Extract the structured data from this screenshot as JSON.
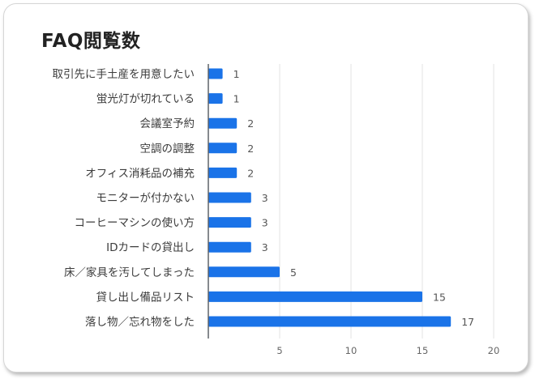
{
  "chart_data": {
    "type": "bar",
    "orientation": "horizontal",
    "title": "FAQ閲覧数",
    "categories": [
      "取引先に手土産を用意したい",
      "蛍光灯が切れている",
      "会議室予約",
      "空調の調整",
      "オフィス消耗品の補充",
      "モニターが付かない",
      "コーヒーマシンの使い方",
      "IDカードの貸出し",
      "床／家具を汚してしまった",
      "貸し出し備品リスト",
      "落し物／忘れ物をした"
    ],
    "values": [
      1,
      1,
      2,
      2,
      2,
      3,
      3,
      3,
      5,
      15,
      17
    ],
    "xlim": [
      0,
      20
    ],
    "xticks": [
      "5",
      "10",
      "15",
      "20"
    ],
    "grid": true,
    "bar_color": "#1a73e8"
  }
}
